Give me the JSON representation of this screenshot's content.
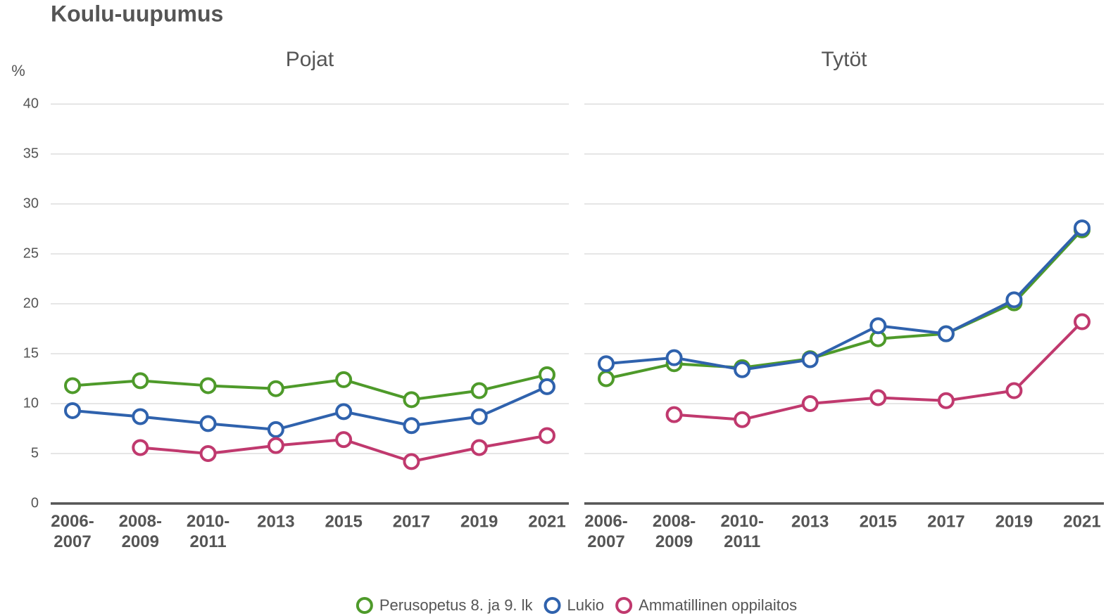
{
  "title": "Koulu-uupumus",
  "y_label": "%",
  "chart_data": [
    {
      "type": "line",
      "title": "Pojat",
      "categories": [
        "2006-2007",
        "2008-2009",
        "2010-2011",
        "2013",
        "2015",
        "2017",
        "2019",
        "2021"
      ],
      "series": [
        {
          "name": "Perusopetus 8. ja 9. lk",
          "color": "#4e9a2a",
          "values": [
            11.8,
            12.3,
            11.8,
            11.5,
            12.4,
            10.4,
            11.3,
            12.9
          ]
        },
        {
          "name": "Lukio",
          "color": "#2f62ad",
          "values": [
            9.3,
            8.7,
            8.0,
            7.4,
            9.2,
            7.8,
            8.7,
            11.7
          ]
        },
        {
          "name": "Ammatillinen oppilaitos",
          "color": "#c0396e",
          "values": [
            null,
            5.6,
            5.0,
            5.8,
            6.4,
            4.2,
            5.6,
            6.8
          ]
        }
      ],
      "ylim": [
        0,
        40
      ],
      "yticks": [
        0,
        5,
        10,
        15,
        20,
        25,
        30,
        35,
        40
      ],
      "grid": true
    },
    {
      "type": "line",
      "title": "Tytöt",
      "categories": [
        "2006-2007",
        "2008-2009",
        "2010-2011",
        "2013",
        "2015",
        "2017",
        "2019",
        "2021"
      ],
      "series": [
        {
          "name": "Perusopetus 8. ja 9. lk",
          "color": "#4e9a2a",
          "values": [
            12.5,
            14.0,
            13.6,
            14.5,
            16.5,
            17.0,
            20.1,
            27.4
          ]
        },
        {
          "name": "Lukio",
          "color": "#2f62ad",
          "values": [
            14.0,
            14.6,
            13.4,
            14.4,
            17.8,
            17.0,
            20.4,
            27.6
          ]
        },
        {
          "name": "Ammatillinen oppilaitos",
          "color": "#c0396e",
          "values": [
            null,
            8.9,
            8.4,
            10.0,
            10.6,
            10.3,
            11.3,
            18.2
          ]
        }
      ],
      "ylim": [
        0,
        40
      ],
      "yticks": [
        0,
        5,
        10,
        15,
        20,
        25,
        30,
        35,
        40
      ],
      "grid": true
    }
  ]
}
